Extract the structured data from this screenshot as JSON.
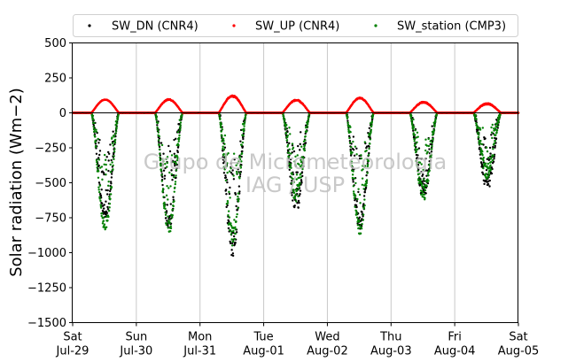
{
  "chart_data": {
    "type": "scatter",
    "title": "",
    "xlabel": "",
    "ylabel": "Solar radiation (Wm−2)",
    "ylim": [
      -1500,
      500
    ],
    "yticks": [
      500,
      250,
      0,
      -250,
      -500,
      -750,
      -1000,
      -1250,
      -1500
    ],
    "ytick_labels": [
      "500",
      "250",
      "0",
      "−250",
      "−500",
      "−750",
      "−1000",
      "−1250",
      "−1500"
    ],
    "xlim": [
      "2017-07-29",
      "2017-08-05"
    ],
    "xticks": [
      {
        "day": "Sat",
        "date": "Jul-29"
      },
      {
        "day": "Sun",
        "date": "Jul-30"
      },
      {
        "day": "Mon",
        "date": "Jul-31"
      },
      {
        "day": "Tue",
        "date": "Aug-01"
      },
      {
        "day": "Wed",
        "date": "Aug-02"
      },
      {
        "day": "Thu",
        "date": "Aug-03"
      },
      {
        "day": "Fri",
        "date": "Aug-04"
      },
      {
        "day": "Sat",
        "date": "Aug-05"
      }
    ],
    "grid": "vertical",
    "zero_line": true,
    "legend": {
      "placement": "top-center-outside",
      "columns": 3
    },
    "watermark": [
      "Grupo de Micrometeorologia",
      "IAG / USP"
    ],
    "series": [
      {
        "name": "SW_DN (CNR4)",
        "color": "#000000",
        "marker": "dot",
        "daily_peak_w_m2": [
          -730,
          -790,
          -940,
          -650,
          -780,
          -560,
          -500
        ],
        "daily_noise": [
          70,
          110,
          180,
          140,
          110,
          130,
          120
        ]
      },
      {
        "name": "SW_UP (CNR4)",
        "color": "#ff0000",
        "marker": "dot",
        "daily_peak_w_m2": [
          95,
          95,
          120,
          90,
          105,
          75,
          65
        ],
        "daily_noise": [
          4,
          8,
          12,
          10,
          8,
          10,
          10
        ]
      },
      {
        "name": "SW_station (CMP3)",
        "color": "#008000",
        "marker": "dot",
        "daily_peak_w_m2": [
          -820,
          -820,
          -870,
          -580,
          -820,
          -580,
          -420
        ],
        "daily_noise": [
          60,
          100,
          170,
          130,
          100,
          120,
          110
        ]
      }
    ],
    "sampling_minutes": 5,
    "daylight_hours_local": [
      7,
      17.5
    ]
  }
}
